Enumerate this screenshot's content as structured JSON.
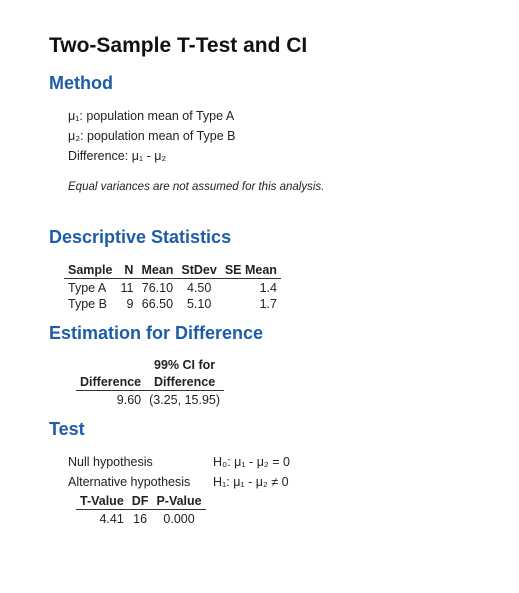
{
  "title": "Two-Sample T-Test and CI",
  "method": {
    "heading": "Method",
    "mu1": "μ₁: population mean of Type A",
    "mu2": "μ₂: population mean of Type B",
    "difference": "Difference: μ₁ - μ₂",
    "note": "Equal variances are not assumed for this analysis."
  },
  "descriptive": {
    "heading": "Descriptive Statistics",
    "headers": [
      "Sample",
      "N",
      "Mean",
      "StDev",
      "SE Mean"
    ],
    "rows": [
      [
        "Type A",
        "11",
        "76.10",
        "4.50",
        "1.4"
      ],
      [
        "Type B",
        "9",
        "66.50",
        "5.10",
        "1.7"
      ]
    ]
  },
  "estimation": {
    "heading": "Estimation for Difference",
    "header_top": "99% CI for",
    "headers": [
      "Difference",
      "Difference"
    ],
    "row": [
      "9.60",
      "(3.25, 15.95)"
    ]
  },
  "test": {
    "heading": "Test",
    "null_label": "Null hypothesis",
    "null_value": "H₀: μ₁ - μ₂ = 0",
    "alt_label": "Alternative hypothesis",
    "alt_value": "H₁: μ₁ - μ₂ ≠ 0",
    "headers": [
      "T-Value",
      "DF",
      "P-Value"
    ],
    "row": [
      "4.41",
      "16",
      "0.000"
    ]
  }
}
